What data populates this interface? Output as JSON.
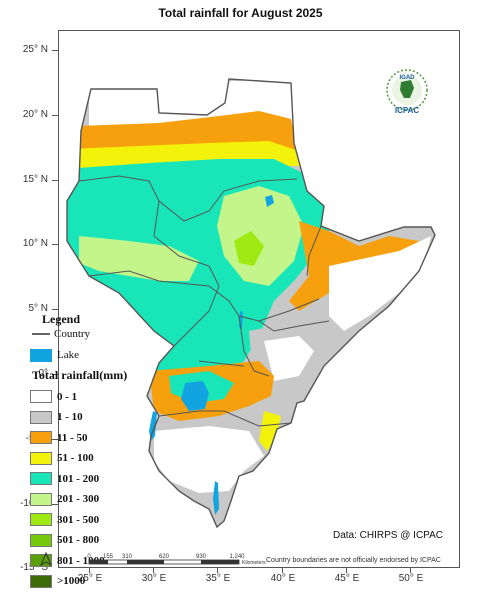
{
  "title": "Total rainfall for August 2025",
  "axes": {
    "latitude": [
      "25° N",
      "20° N",
      "15° N",
      "10° N",
      "5° N",
      "0°",
      "-5° S",
      "-10° S",
      "-15° S"
    ],
    "longitude": [
      "25° E",
      "30° E",
      "35° E",
      "40° E",
      "45° E",
      "50° E"
    ]
  },
  "legend": {
    "heading": "Legend",
    "country_label": "Country",
    "lake_label": "Lake",
    "rainfall_heading": "Total rainfall(mm)",
    "classes": [
      {
        "label": "0 - 1",
        "color": "#ffffff"
      },
      {
        "label": "1 - 10",
        "color": "#c8c8c8"
      },
      {
        "label": "11 - 50",
        "color": "#f5a00c"
      },
      {
        "label": "51 - 100",
        "color": "#f2f20a"
      },
      {
        "label": "101 - 200",
        "color": "#19e6b8"
      },
      {
        "label": "201 - 300",
        "color": "#c3f58a"
      },
      {
        "label": "301 - 500",
        "color": "#9eea12"
      },
      {
        "label": "501 - 800",
        "color": "#76c80a"
      },
      {
        "label": "801 - 1000",
        "color": "#5a9e08"
      },
      {
        "label": ">1000",
        "color": "#3c6b07"
      }
    ],
    "lake_color": "#12a4e0"
  },
  "scale_bar": {
    "ticks": [
      "0",
      "155",
      "310",
      "620",
      "930",
      "1,240"
    ],
    "unit": "Kilometers"
  },
  "logo": {
    "top_text": "IGAD",
    "bottom_text": "ICPAC"
  },
  "credit": "Data: CHIRPS @ ICPAC",
  "disclaimer": "Country boundaries are not officially endorsed by ICPAC"
}
